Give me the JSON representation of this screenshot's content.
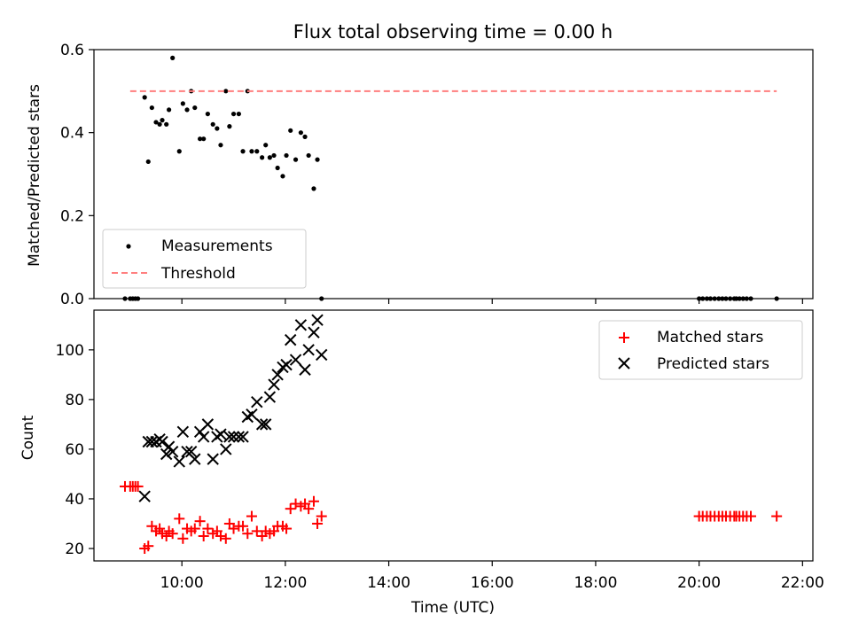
{
  "title": "Flux total observing time = 0.00 h",
  "chart_data": [
    {
      "type": "scatter",
      "ylabel": "Matched/Predicted stars",
      "xlabel": "",
      "xlim": [
        8.3,
        22.2
      ],
      "ylim": [
        0,
        0.6
      ],
      "yticks": [
        0.0,
        0.2,
        0.4,
        0.6
      ],
      "yticklabels": [
        "0.0",
        "0.2",
        "0.4",
        "0.6"
      ],
      "xticks": [
        10,
        12,
        14,
        16,
        18,
        20,
        22
      ],
      "grid": false,
      "legend_position": "lower-left",
      "series": [
        {
          "name": "Measurements",
          "kind": "points",
          "color": "#000000",
          "x": [
            8.9,
            9.0,
            9.05,
            9.1,
            9.15,
            9.28,
            9.35,
            9.42,
            9.5,
            9.57,
            9.62,
            9.7,
            9.75,
            9.82,
            9.95,
            10.02,
            10.1,
            10.18,
            10.25,
            10.35,
            10.42,
            10.5,
            10.6,
            10.68,
            10.75,
            10.85,
            10.92,
            11.0,
            11.1,
            11.18,
            11.27,
            11.35,
            11.45,
            11.55,
            11.62,
            11.7,
            11.78,
            11.85,
            11.95,
            12.02,
            12.1,
            12.2,
            12.3,
            12.38,
            12.45,
            12.55,
            12.62,
            12.7,
            20.0,
            20.07,
            20.15,
            20.22,
            20.3,
            20.38,
            20.45,
            20.52,
            20.6,
            20.68,
            20.72,
            20.78,
            20.85,
            20.92,
            21.0,
            21.5
          ],
          "y": [
            0.0,
            0.0,
            0.0,
            0.0,
            0.0,
            0.485,
            0.33,
            0.46,
            0.425,
            0.42,
            0.43,
            0.42,
            0.455,
            0.58,
            0.355,
            0.47,
            0.455,
            0.5,
            0.46,
            0.385,
            0.385,
            0.445,
            0.42,
            0.41,
            0.37,
            0.5,
            0.415,
            0.445,
            0.445,
            0.355,
            0.5,
            0.355,
            0.355,
            0.34,
            0.37,
            0.34,
            0.345,
            0.315,
            0.295,
            0.345,
            0.405,
            0.335,
            0.4,
            0.39,
            0.345,
            0.265,
            0.335,
            0.0,
            0.0,
            0.0,
            0.0,
            0.0,
            0.0,
            0.0,
            0.0,
            0.0,
            0.0,
            0.0,
            0.0,
            0.0,
            0.0,
            0.0,
            0.0,
            0.0
          ]
        },
        {
          "name": "Threshold",
          "kind": "dashed-line",
          "color": "#ff7f7f",
          "x": [
            9.0,
            21.5
          ],
          "y": [
            0.5,
            0.5
          ]
        }
      ]
    },
    {
      "type": "scatter",
      "ylabel": "Count",
      "xlabel": "Time (UTC)",
      "xlim": [
        8.3,
        22.2
      ],
      "ylim": [
        15,
        116
      ],
      "yticks": [
        20,
        40,
        60,
        80,
        100
      ],
      "yticklabels": [
        "20",
        "40",
        "60",
        "80",
        "100"
      ],
      "xticks": [
        10,
        12,
        14,
        16,
        18,
        20,
        22
      ],
      "xticklabels": [
        "10:00",
        "12:00",
        "14:00",
        "16:00",
        "18:00",
        "20:00",
        "22:00"
      ],
      "grid": false,
      "legend_position": "upper-right",
      "series": [
        {
          "name": "Matched stars",
          "marker": "plus",
          "color": "#ff0000",
          "x": [
            8.9,
            9.0,
            9.05,
            9.1,
            9.15,
            9.28,
            9.35,
            9.42,
            9.5,
            9.57,
            9.62,
            9.7,
            9.75,
            9.82,
            9.95,
            10.02,
            10.1,
            10.18,
            10.25,
            10.35,
            10.42,
            10.5,
            10.6,
            10.68,
            10.75,
            10.85,
            10.92,
            11.0,
            11.1,
            11.18,
            11.27,
            11.35,
            11.45,
            11.55,
            11.62,
            11.7,
            11.78,
            11.85,
            11.95,
            12.02,
            12.1,
            12.2,
            12.3,
            12.38,
            12.45,
            12.55,
            12.62,
            12.7,
            20.0,
            20.07,
            20.15,
            20.22,
            20.3,
            20.38,
            20.45,
            20.52,
            20.6,
            20.68,
            20.72,
            20.78,
            20.85,
            20.92,
            21.0,
            21.5
          ],
          "y": [
            45,
            45,
            45,
            45,
            45,
            20,
            21,
            29,
            27,
            28,
            26,
            25,
            27,
            26,
            32,
            24,
            28,
            27,
            28,
            31,
            25,
            28,
            26,
            27,
            25,
            24,
            30,
            28,
            29,
            29,
            26,
            33,
            27,
            25,
            27,
            26,
            27,
            29,
            29,
            28,
            36,
            38,
            37,
            38,
            36,
            39,
            30,
            33,
            33,
            33,
            33,
            33,
            33,
            33,
            33,
            33,
            33,
            33,
            33,
            33,
            33,
            33,
            33,
            33
          ]
        },
        {
          "name": "Predicted stars",
          "marker": "x",
          "color": "#000000",
          "x": [
            9.28,
            9.35,
            9.42,
            9.5,
            9.57,
            9.62,
            9.7,
            9.75,
            9.82,
            9.95,
            10.02,
            10.1,
            10.18,
            10.25,
            10.35,
            10.42,
            10.5,
            10.6,
            10.68,
            10.75,
            10.85,
            10.92,
            11.0,
            11.1,
            11.18,
            11.27,
            11.35,
            11.45,
            11.55,
            11.62,
            11.7,
            11.78,
            11.85,
            11.95,
            12.02,
            12.1,
            12.2,
            12.3,
            12.38,
            12.45,
            12.55,
            12.62,
            12.7
          ],
          "y": [
            41,
            63,
            63,
            63,
            64,
            63,
            58,
            61,
            59,
            55,
            67,
            59,
            59,
            56,
            67,
            65,
            70,
            56,
            65,
            66,
            60,
            65,
            65,
            65,
            65,
            73,
            74,
            79,
            70,
            70,
            81,
            86,
            90,
            93,
            94,
            104,
            96,
            110,
            92,
            100,
            107,
            112,
            98
          ]
        }
      ]
    }
  ]
}
